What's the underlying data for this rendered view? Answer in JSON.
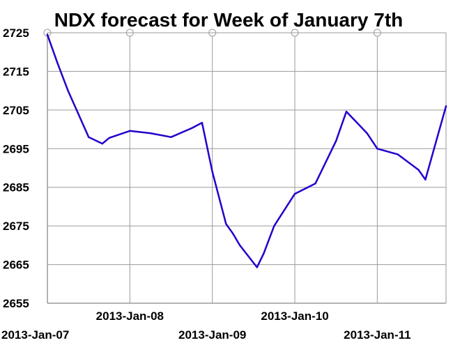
{
  "colors": {
    "background": "#ffffff",
    "grid": "#9a9a9a",
    "series_line": "#2200cc",
    "text": "#000000"
  },
  "chart_data": {
    "type": "line",
    "title": "NDX forecast for Week of January 7th",
    "xlabel": "",
    "ylabel": "",
    "grid": true,
    "legend": "none",
    "x_ticks": [
      "2013-Jan-07",
      "2013-Jan-08",
      "2013-Jan-09",
      "2013-Jan-10",
      "2013-Jan-11"
    ],
    "xlim": [
      "2013-Jan-07 00:00",
      "2013-Jan-11 20:00"
    ],
    "y_ticks": [
      2725,
      2715,
      2705,
      2695,
      2685,
      2675,
      2665,
      2655
    ],
    "ylim": [
      2655,
      2725
    ],
    "series": [
      {
        "x": [
          "2013-Jan-07 00:00",
          "2013-Jan-07 03:00",
          "2013-Jan-07 06:00",
          "2013-Jan-07 09:00",
          "2013-Jan-07 12:00",
          "2013-Jan-07 16:00",
          "2013-Jan-07 18:00",
          "2013-Jan-08 00:00",
          "2013-Jan-08 06:00",
          "2013-Jan-08 12:00",
          "2013-Jan-08 18:00",
          "2013-Jan-08 21:00",
          "2013-Jan-09 00:00",
          "2013-Jan-09 04:00",
          "2013-Jan-09 06:00",
          "2013-Jan-09 08:00",
          "2013-Jan-09 13:00",
          "2013-Jan-09 15:00",
          "2013-Jan-09 18:00",
          "2013-Jan-10 00:00",
          "2013-Jan-10 06:00",
          "2013-Jan-10 12:00",
          "2013-Jan-10 15:00",
          "2013-Jan-10 21:00",
          "2013-Jan-11 00:00",
          "2013-Jan-11 06:00",
          "2013-Jan-11 12:00",
          "2013-Jan-11 14:00",
          "2013-Jan-11 20:00"
        ],
        "y": [
          2724.5,
          2717.0,
          2710.0,
          2704.0,
          2698.0,
          2696.3,
          2697.8,
          2699.6,
          2699.0,
          2698.0,
          2700.3,
          2701.7,
          2689.0,
          2675.5,
          2673.0,
          2670.0,
          2664.3,
          2668.0,
          2675.0,
          2683.3,
          2686.0,
          2697.0,
          2704.6,
          2699.0,
          2695.0,
          2693.5,
          2689.5,
          2687.0,
          2706.0
        ]
      }
    ]
  }
}
